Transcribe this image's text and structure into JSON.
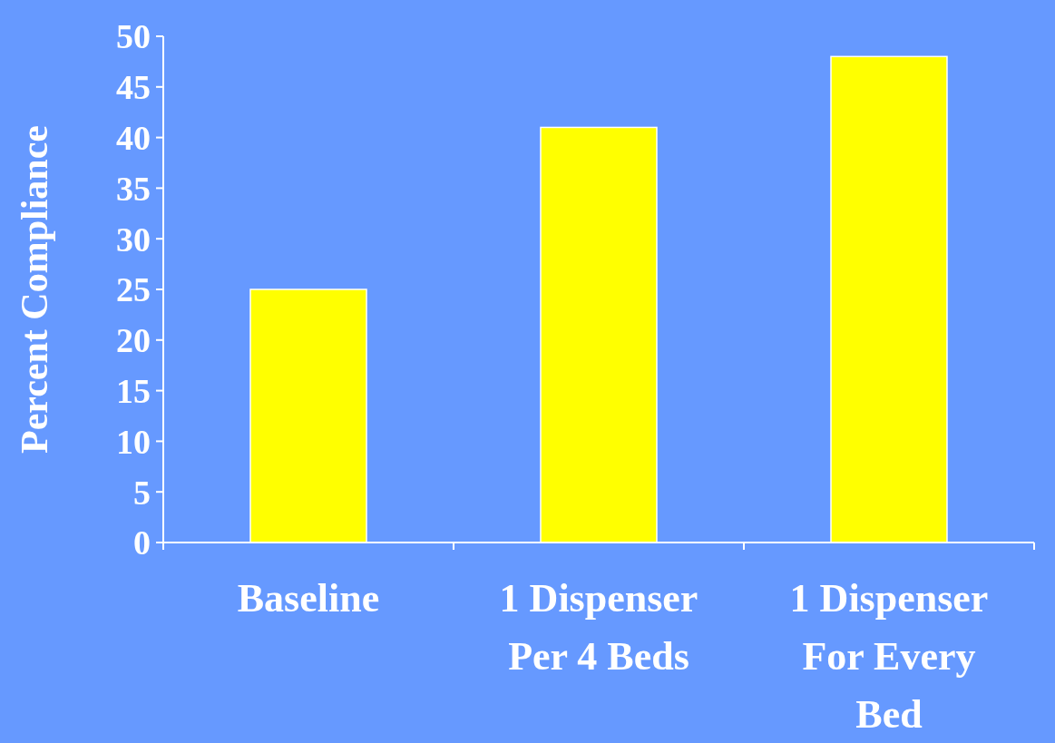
{
  "chart_data": {
    "type": "bar",
    "ylabel": "Percent Compliance",
    "categories": [
      "Baseline",
      "1 Dispenser Per 4 Beds",
      "1 Dispenser For Every Bed"
    ],
    "values": [
      25,
      41,
      48
    ],
    "color": "#ffff00",
    "ylim": [
      0,
      50
    ],
    "yticks": [
      0,
      5,
      10,
      15,
      20,
      25,
      30,
      35,
      40,
      45,
      50
    ]
  }
}
